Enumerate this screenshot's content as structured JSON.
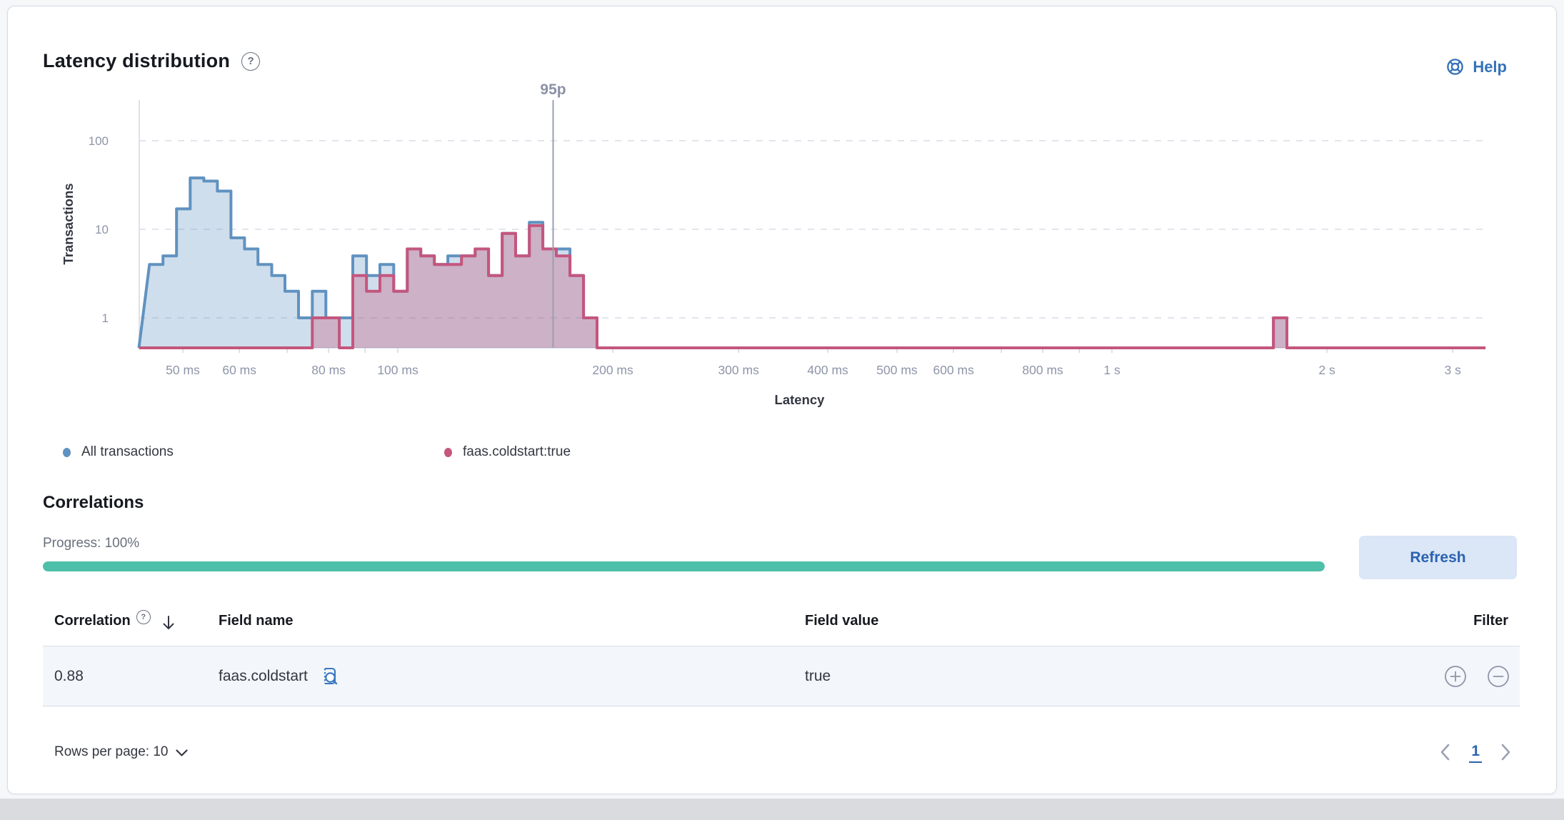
{
  "card": {
    "title": "Latency distribution",
    "help_label": "Help"
  },
  "colors": {
    "accent_blue": "#3672b9",
    "series_all": "#6092C0",
    "series_cold": "#C4567D",
    "progress_teal": "#4ebfa8",
    "refresh_bg": "#dbe6f6",
    "refresh_text": "#2a62b0",
    "axis_text": "#8e95a8",
    "grid_line": "#e1e5ec"
  },
  "icons": {
    "title_help": "question-in-circle",
    "help": "life-ring",
    "correlation_help": "question-in-circle",
    "sort": "arrow-down",
    "inspect": "magnifier-document",
    "filter_in": "plus-circle",
    "filter_out": "minus-circle",
    "rows_chevron": "chevron-down",
    "prev": "chevron-left",
    "next": "chevron-right"
  },
  "chart_data": {
    "type": "histogram-step-area",
    "title": "Latency distribution",
    "xlabel": "Latency",
    "ylabel": "Transactions",
    "x_scale": "log",
    "y_scale": "log",
    "grid": "dashed-horizontal",
    "legend_position": "below",
    "y_ticks": [
      1,
      10,
      100
    ],
    "x_ticks": [
      {
        "ms": 50,
        "label": "50 ms"
      },
      {
        "ms": 60,
        "label": "60 ms"
      },
      {
        "ms": 80,
        "label": "80 ms"
      },
      {
        "ms": 100,
        "label": "100 ms"
      },
      {
        "ms": 200,
        "label": "200 ms"
      },
      {
        "ms": 300,
        "label": "300 ms"
      },
      {
        "ms": 400,
        "label": "400 ms"
      },
      {
        "ms": 500,
        "label": "500 ms"
      },
      {
        "ms": 600,
        "label": "600 ms"
      },
      {
        "ms": 800,
        "label": "800 ms"
      },
      {
        "ms": 1000,
        "label": "1 s"
      },
      {
        "ms": 2000,
        "label": "2 s"
      },
      {
        "ms": 3000,
        "label": "3 s"
      }
    ],
    "minor_ticks_ms": [
      50,
      60,
      70,
      80,
      90,
      100,
      200,
      300,
      400,
      500,
      600,
      700,
      800,
      900,
      1000,
      2000,
      3000
    ],
    "x_domain_ms": [
      43.4,
      3335
    ],
    "annotation": {
      "label": "95p",
      "x_ms": 165
    },
    "bin_edges_ms": [
      44.9,
      46.9,
      49.0,
      51.2,
      53.5,
      55.9,
      58.4,
      61.0,
      63.7,
      66.6,
      69.5,
      72.6,
      75.9,
      79.3,
      82.8,
      86.5,
      90.4,
      94.4,
      98.7,
      103.1,
      107.7,
      112.5,
      117.5,
      122.8,
      128.3,
      134.0,
      140.0,
      146.2,
      152.8,
      159.6,
      166.7,
      174.2,
      182.0,
      190.1
    ],
    "series": [
      {
        "name": "All transactions",
        "color": "#6092C0",
        "fill_opacity": 0.3,
        "values": [
          4,
          5,
          17,
          38,
          35,
          27,
          8,
          6,
          4,
          3,
          2,
          1,
          2,
          1,
          1,
          5,
          3,
          4,
          2,
          6,
          5,
          4,
          5,
          5,
          6,
          3,
          9,
          5,
          12,
          6,
          6,
          3,
          1
        ]
      },
      {
        "name": "faas.coldstart:true",
        "color": "#C4567D",
        "fill_opacity": 0.33,
        "values": [
          0,
          0,
          0,
          0,
          0,
          0,
          0,
          0,
          0,
          0,
          0,
          0,
          1,
          1,
          0,
          3,
          2,
          3,
          2,
          6,
          5,
          4,
          4,
          5,
          6,
          3,
          9,
          5,
          11,
          6,
          5,
          3,
          1
        ]
      }
    ],
    "outlier_bin": {
      "start_ms": 1683,
      "end_ms": 1758,
      "values": [
        1,
        1
      ]
    }
  },
  "legend": [
    {
      "label": "All transactions",
      "color": "#6092C0"
    },
    {
      "label": "faas.coldstart:true",
      "color": "#C4567D"
    }
  ],
  "correlations": {
    "heading": "Correlations",
    "progress_label": "Progress: 100%",
    "progress_value": 100,
    "refresh_label": "Refresh",
    "table": {
      "columns": {
        "correlation": "Correlation",
        "field_name": "Field name",
        "field_value": "Field value",
        "filter": "Filter"
      },
      "rows": [
        {
          "correlation": "0.88",
          "field_name": "faas.coldstart",
          "field_value": "true"
        }
      ]
    },
    "pagination": {
      "rows_per_page_label": "Rows per page: 10",
      "current_page": "1"
    }
  }
}
